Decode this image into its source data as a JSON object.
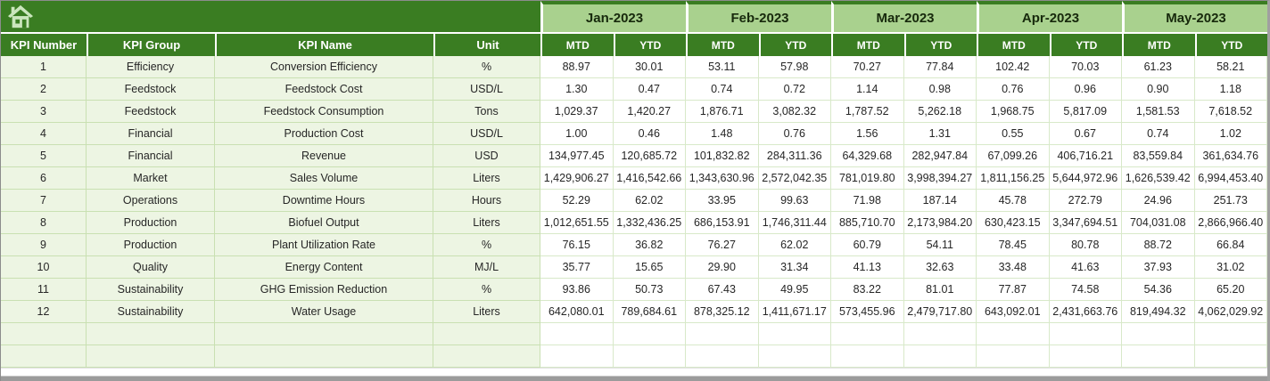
{
  "header": {
    "columns": [
      "KPI Number",
      "KPI Group",
      "KPI Name",
      "Unit"
    ],
    "months": [
      "Jan-2023",
      "Feb-2023",
      "Mar-2023",
      "Apr-2023",
      "May-2023"
    ],
    "sub_headers": [
      "MTD",
      "YTD"
    ]
  },
  "icons": {
    "home": "home-icon"
  },
  "colors": {
    "header_green": "#3A7D22",
    "month_band_green": "#A9D18E",
    "row_pale_green": "#EDF5E3",
    "grid_line": "#D8E9C9",
    "bottom_bar_gray": "#9B9B9B"
  },
  "table": {
    "rows": [
      {
        "kpi_number": "1",
        "kpi_group": "Efficiency",
        "kpi_name": "Conversion Efficiency",
        "unit": "%",
        "values": [
          "88.97",
          "30.01",
          "53.11",
          "57.98",
          "70.27",
          "77.84",
          "102.42",
          "70.03",
          "61.23",
          "58.21"
        ]
      },
      {
        "kpi_number": "2",
        "kpi_group": "Feedstock",
        "kpi_name": "Feedstock Cost",
        "unit": "USD/L",
        "values": [
          "1.30",
          "0.47",
          "0.74",
          "0.72",
          "1.14",
          "0.98",
          "0.76",
          "0.96",
          "0.90",
          "1.18"
        ]
      },
      {
        "kpi_number": "3",
        "kpi_group": "Feedstock",
        "kpi_name": "Feedstock Consumption",
        "unit": "Tons",
        "values": [
          "1,029.37",
          "1,420.27",
          "1,876.71",
          "3,082.32",
          "1,787.52",
          "5,262.18",
          "1,968.75",
          "5,817.09",
          "1,581.53",
          "7,618.52"
        ]
      },
      {
        "kpi_number": "4",
        "kpi_group": "Financial",
        "kpi_name": "Production Cost",
        "unit": "USD/L",
        "values": [
          "1.00",
          "0.46",
          "1.48",
          "0.76",
          "1.56",
          "1.31",
          "0.55",
          "0.67",
          "0.74",
          "1.02"
        ]
      },
      {
        "kpi_number": "5",
        "kpi_group": "Financial",
        "kpi_name": "Revenue",
        "unit": "USD",
        "values": [
          "134,977.45",
          "120,685.72",
          "101,832.82",
          "284,311.36",
          "64,329.68",
          "282,947.84",
          "67,099.26",
          "406,716.21",
          "83,559.84",
          "361,634.76"
        ]
      },
      {
        "kpi_number": "6",
        "kpi_group": "Market",
        "kpi_name": "Sales Volume",
        "unit": "Liters",
        "values": [
          "1,429,906.27",
          "1,416,542.66",
          "1,343,630.96",
          "2,572,042.35",
          "781,019.80",
          "3,998,394.27",
          "1,811,156.25",
          "5,644,972.96",
          "1,626,539.42",
          "6,994,453.40"
        ]
      },
      {
        "kpi_number": "7",
        "kpi_group": "Operations",
        "kpi_name": "Downtime Hours",
        "unit": "Hours",
        "values": [
          "52.29",
          "62.02",
          "33.95",
          "99.63",
          "71.98",
          "187.14",
          "45.78",
          "272.79",
          "24.96",
          "251.73"
        ]
      },
      {
        "kpi_number": "8",
        "kpi_group": "Production",
        "kpi_name": "Biofuel Output",
        "unit": "Liters",
        "values": [
          "1,012,651.55",
          "1,332,436.25",
          "686,153.91",
          "1,746,311.44",
          "885,710.70",
          "2,173,984.20",
          "630,423.15",
          "3,347,694.51",
          "704,031.08",
          "2,866,966.40"
        ]
      },
      {
        "kpi_number": "9",
        "kpi_group": "Production",
        "kpi_name": "Plant Utilization Rate",
        "unit": "%",
        "values": [
          "76.15",
          "36.82",
          "76.27",
          "62.02",
          "60.79",
          "54.11",
          "78.45",
          "80.78",
          "88.72",
          "66.84"
        ]
      },
      {
        "kpi_number": "10",
        "kpi_group": "Quality",
        "kpi_name": "Energy Content",
        "unit": "MJ/L",
        "values": [
          "35.77",
          "15.65",
          "29.90",
          "31.34",
          "41.13",
          "32.63",
          "33.48",
          "41.63",
          "37.93",
          "31.02"
        ]
      },
      {
        "kpi_number": "11",
        "kpi_group": "Sustainability",
        "kpi_name": "GHG Emission Reduction",
        "unit": "%",
        "values": [
          "93.86",
          "50.73",
          "67.43",
          "49.95",
          "83.22",
          "81.01",
          "77.87",
          "74.58",
          "54.36",
          "65.20"
        ]
      },
      {
        "kpi_number": "12",
        "kpi_group": "Sustainability",
        "kpi_name": "Water Usage",
        "unit": "Liters",
        "values": [
          "642,080.01",
          "789,684.61",
          "878,325.12",
          "1,411,671.17",
          "573,455.96",
          "2,479,717.80",
          "643,092.01",
          "2,431,663.76",
          "819,494.32",
          "4,062,029.92"
        ]
      }
    ],
    "empty_row_count": 2
  }
}
